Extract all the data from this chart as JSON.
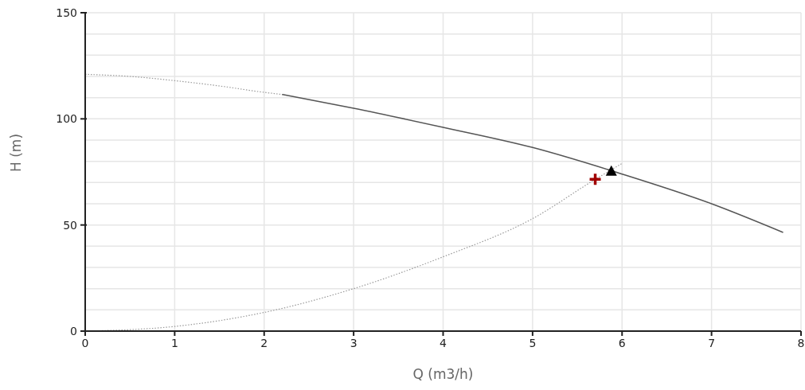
{
  "chart_data": {
    "type": "line",
    "xlabel": "Q (m3/h)",
    "ylabel": "H (m)",
    "xlim": [
      0,
      8
    ],
    "xticks": [
      0,
      1,
      2,
      3,
      4,
      5,
      6,
      7,
      8
    ],
    "ylim": [
      0,
      150
    ],
    "yticks": [
      0,
      {
        "value": 10,
        "label": null
      },
      {
        "value": 20,
        "label": null
      },
      {
        "value": 30,
        "label": null
      },
      {
        "value": 40,
        "label": null
      },
      50,
      {
        "value": 60,
        "label": null
      },
      {
        "value": 70,
        "label": null
      },
      {
        "value": 80,
        "label": null
      },
      {
        "value": 90,
        "label": null
      },
      100,
      {
        "value": 110,
        "label": null
      },
      {
        "value": 120,
        "label": null
      },
      {
        "value": 130,
        "label": null
      },
      {
        "value": 140,
        "label": null
      },
      150
    ],
    "grid": true,
    "series": [
      {
        "color": "#9a9a9a",
        "line_style": "dotted",
        "marker": "none",
        "x": [
          0,
          0.5,
          1,
          1.5,
          2,
          2.2
        ],
        "values": [
          121,
          120,
          118,
          115.5,
          112.5,
          111.5
        ]
      },
      {
        "color": "#555555",
        "line_style": "solid",
        "marker": "none",
        "x": [
          2.2,
          3,
          4,
          5,
          6,
          7,
          7.8
        ],
        "values": [
          111.5,
          105,
          96,
          86.5,
          74,
          60,
          46.5
        ]
      },
      {
        "color": "#9a9a9a",
        "line_style": "dotted",
        "marker": "none",
        "x": [
          0,
          1,
          2,
          3,
          4,
          5,
          5.7,
          6
        ],
        "values": [
          0,
          2.2,
          8.8,
          20,
          35,
          53,
          71.5,
          79
        ]
      },
      {
        "type": "scatter",
        "color": "#a00000",
        "marker": "cross",
        "x": [
          5.7
        ],
        "values": [
          71.5
        ]
      },
      {
        "type": "scatter",
        "color": "#000000",
        "marker": "triangle",
        "x": [
          5.88
        ],
        "values": [
          75.5
        ]
      }
    ]
  }
}
